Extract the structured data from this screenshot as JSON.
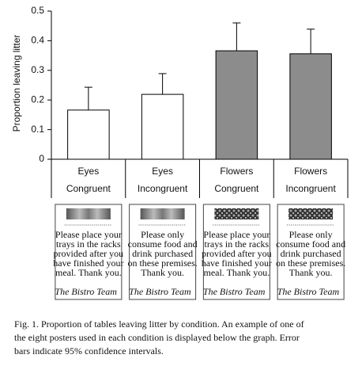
{
  "chart_data": {
    "type": "bar",
    "y_label": "Proportion leaving litter",
    "categories": [
      [
        "Eyes",
        "Congruent"
      ],
      [
        "Eyes",
        "Incongruent"
      ],
      [
        "Flowers",
        "Congruent"
      ],
      [
        "Flowers",
        "Incongruent"
      ]
    ],
    "values": [
      0.166,
      0.219,
      0.366,
      0.356
    ],
    "errors": [
      0.077,
      0.07,
      0.094,
      0.083
    ],
    "colors": [
      "#ffffff",
      "#ffffff",
      "#8c8c8c",
      "#8c8c8c"
    ],
    "ylim": [
      0,
      0.5
    ],
    "yticks": [
      0,
      0.1,
      0.2,
      0.3,
      0.4,
      0.5
    ]
  },
  "posters": [
    {
      "image": "eyes",
      "lines": [
        "Please place your",
        "trays in the racks",
        "provided after you",
        "have finished your",
        "meal. Thank you."
      ],
      "signature": "The Bistro Team"
    },
    {
      "image": "eyes",
      "lines": [
        "Please only",
        "consume food and",
        "drink purchased",
        "on these premises.",
        "Thank you."
      ],
      "signature": "The Bistro Team"
    },
    {
      "image": "flowers",
      "lines": [
        "Please place your",
        "trays in the racks",
        "provided after you",
        "have finished your",
        "meal. Thank you."
      ],
      "signature": "The Bistro Team"
    },
    {
      "image": "flowers",
      "lines": [
        "Please only",
        "consume food and",
        "drink purchased",
        "on these premises.",
        "Thank you."
      ],
      "signature": "The Bistro Team"
    }
  ],
  "caption": [
    "Fig. 1. Proportion of tables leaving litter by condition. An example of one of",
    "the eight posters used in each condition is displayed below the graph. Error",
    "bars indicate 95% confidence intervals."
  ]
}
